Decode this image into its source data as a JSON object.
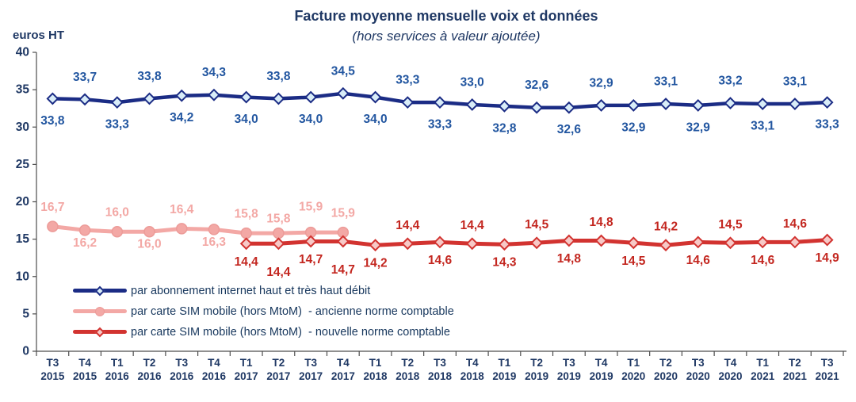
{
  "colors": {
    "text": "#1F3864",
    "axis": "#4D4D4D",
    "background": "#FFFFFF",
    "blue_line": "#1B2C85",
    "pink_line": "#F3A8A5",
    "red_line": "#D23330"
  },
  "chart_data": {
    "type": "line",
    "title": "Facture moyenne mensuelle voix et données",
    "subtitle": "(hors services à valeur ajoutée)",
    "ylabel": "euros HT",
    "ylim": [
      0,
      40
    ],
    "y_ticks": [
      0,
      5,
      10,
      15,
      20,
      25,
      30,
      35,
      40
    ],
    "grid": false,
    "legend_position": "inside-bottom-left",
    "categories": [
      {
        "q": "T3",
        "year": "2015"
      },
      {
        "q": "T4",
        "year": "2015"
      },
      {
        "q": "T1",
        "year": "2016"
      },
      {
        "q": "T2",
        "year": "2016"
      },
      {
        "q": "T3",
        "year": "2016"
      },
      {
        "q": "T4",
        "year": "2016"
      },
      {
        "q": "T1",
        "year": "2017"
      },
      {
        "q": "T2",
        "year": "2017"
      },
      {
        "q": "T3",
        "year": "2017"
      },
      {
        "q": "T4",
        "year": "2017"
      },
      {
        "q": "T1",
        "year": "2018"
      },
      {
        "q": "T2",
        "year": "2018"
      },
      {
        "q": "T3",
        "year": "2018"
      },
      {
        "q": "T4",
        "year": "2018"
      },
      {
        "q": "T1",
        "year": "2019"
      },
      {
        "q": "T2",
        "year": "2019"
      },
      {
        "q": "T3",
        "year": "2019"
      },
      {
        "q": "T4",
        "year": "2019"
      },
      {
        "q": "T1",
        "year": "2020"
      },
      {
        "q": "T2",
        "year": "2020"
      },
      {
        "q": "T3",
        "year": "2020"
      },
      {
        "q": "T4",
        "year": "2020"
      },
      {
        "q": "T1",
        "year": "2021"
      },
      {
        "q": "T2",
        "year": "2021"
      },
      {
        "q": "T3",
        "year": "2021"
      }
    ],
    "series": [
      {
        "id": "internet-fixe",
        "name": "par abonnement internet haut et très haut débit",
        "line_color": "#1B2C85",
        "line_width": 4.5,
        "marker": "diamond",
        "marker_fill": "#D9EDF8",
        "marker_stroke": "#1B2C85",
        "label_color": "#2256A0",
        "label_offset": {
          "above": 28,
          "below": 28
        },
        "values": [
          33.8,
          33.7,
          33.3,
          33.8,
          34.2,
          34.3,
          34.0,
          33.8,
          34.0,
          34.5,
          34.0,
          33.3,
          33.3,
          33.0,
          32.8,
          32.6,
          32.6,
          32.9,
          32.9,
          33.1,
          32.9,
          33.2,
          33.1,
          33.1,
          33.3
        ],
        "label_pos": [
          "below",
          "above",
          "below",
          "above",
          "below",
          "above",
          "below",
          "above",
          "below",
          "above",
          "below",
          "above",
          "below",
          "above",
          "below",
          "above",
          "below",
          "above",
          "below",
          "above",
          "below",
          "above",
          "below",
          "above",
          "below"
        ],
        "label_dy": [
          0,
          0,
          0,
          0,
          0,
          0,
          0,
          0,
          0,
          0,
          0,
          0,
          0,
          0,
          0,
          0,
          0,
          0,
          0,
          0,
          0,
          0,
          0,
          0,
          0
        ]
      },
      {
        "id": "sim-ancienne-norme",
        "name": "par carte SIM mobile (hors MtoM)  - ancienne norme comptable",
        "line_color": "#F3A8A5",
        "line_width": 5,
        "marker": "circle",
        "marker_fill": "#F3A8A5",
        "marker_stroke": "#EC9B98",
        "label_color": "#F3A8A5",
        "label_offset": {
          "above": 24,
          "below": 16
        },
        "values": [
          16.7,
          16.2,
          16.0,
          16.0,
          16.4,
          16.3,
          15.8,
          15.8,
          15.9,
          15.9,
          null,
          null,
          null,
          null,
          null,
          null,
          null,
          null,
          null,
          null,
          null,
          null,
          null,
          null,
          null
        ],
        "label_pos": [
          "above",
          "below",
          "above",
          "below",
          "above",
          "below",
          "above",
          "above",
          "above",
          "above",
          null,
          null,
          null,
          null,
          null,
          null,
          null,
          null,
          null,
          null,
          null,
          null,
          null,
          null,
          null
        ],
        "label_dy": [
          0,
          0,
          0,
          0,
          0,
          0,
          0,
          6,
          -8,
          0,
          0,
          0,
          0,
          0,
          0,
          0,
          0,
          0,
          0,
          0,
          0,
          0,
          0,
          0,
          0
        ]
      },
      {
        "id": "sim-nouvelle-norme",
        "name": "par carte SIM mobile (hors MtoM)  - nouvelle norme comptable",
        "line_color": "#D23330",
        "line_width": 5,
        "marker": "diamond",
        "marker_fill": "#F7C9C7",
        "marker_stroke": "#D23330",
        "label_color": "#C3261F",
        "label_offset": {
          "above": 23,
          "below": 23
        },
        "values": [
          null,
          null,
          null,
          null,
          null,
          null,
          14.4,
          14.4,
          14.7,
          14.7,
          14.2,
          14.4,
          14.6,
          14.4,
          14.3,
          14.5,
          14.8,
          14.8,
          14.5,
          14.2,
          14.6,
          14.5,
          14.6,
          14.6,
          14.9
        ],
        "label_pos": [
          null,
          null,
          null,
          null,
          null,
          null,
          "below",
          "below",
          "below",
          "below",
          "below",
          "above",
          "below",
          "above",
          "below",
          "above",
          "below",
          "above",
          "below",
          "above",
          "below",
          "above",
          "below",
          "above",
          "below"
        ],
        "label_dy": [
          0,
          0,
          0,
          0,
          0,
          0,
          0,
          13,
          0,
          13,
          0,
          0,
          0,
          0,
          0,
          0,
          0,
          0,
          0,
          0,
          0,
          0,
          0,
          0,
          0
        ]
      }
    ]
  }
}
